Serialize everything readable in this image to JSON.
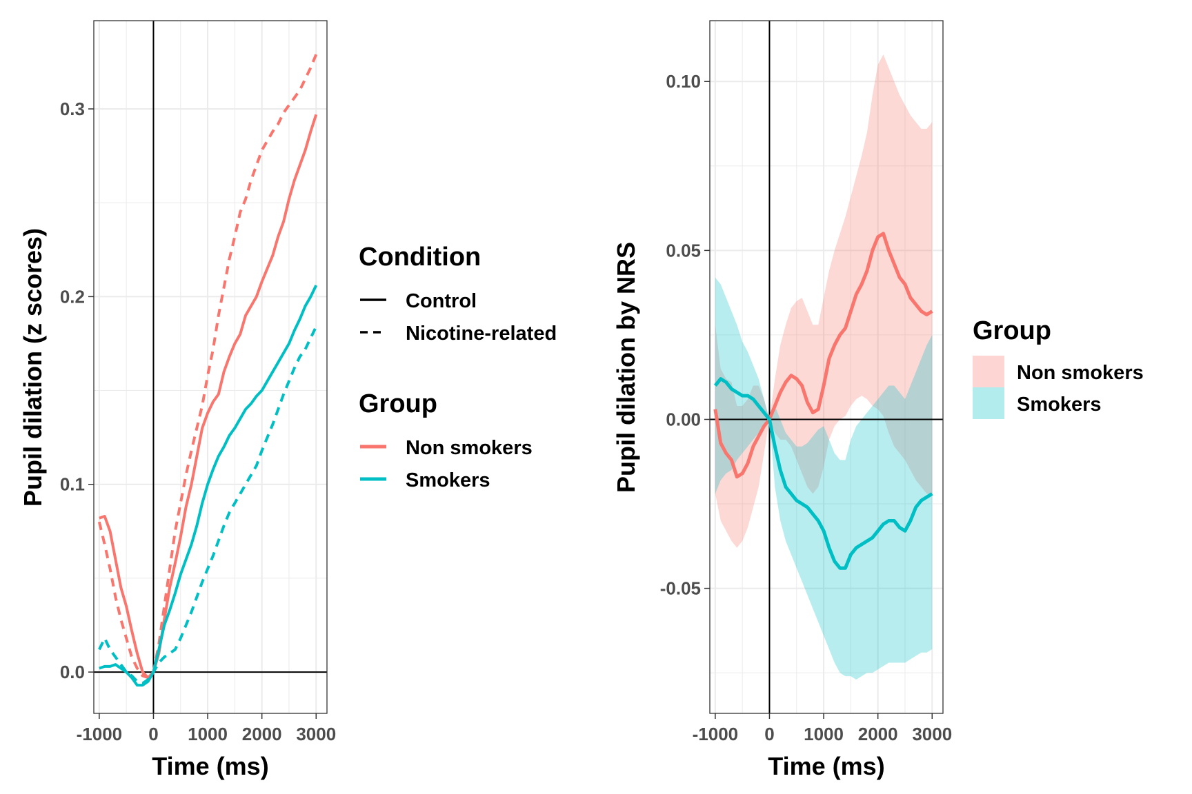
{
  "colors": {
    "non_smokers": "#F8766D",
    "smokers": "#00BFC4",
    "grid": "#ebebeb",
    "panel_border": "#333333",
    "ref_line": "#000000"
  },
  "chart_data": [
    {
      "type": "line",
      "xlabel": "Time (ms)",
      "ylabel": "Pupil dilation (z scores)",
      "xlim": [
        -1100,
        3200
      ],
      "ylim": [
        -0.022,
        0.347
      ],
      "x_ticks": [
        -1000,
        0,
        1000,
        2000,
        3000
      ],
      "x_tick_labels": [
        "-1000",
        "0",
        "1000",
        "2000",
        "3000"
      ],
      "y_ticks": [
        0.0,
        0.1,
        0.2,
        0.3
      ],
      "y_tick_labels": [
        "0.0",
        "0.1",
        "0.2",
        "0.3"
      ],
      "grid": true,
      "reference_lines": {
        "x": 0,
        "y": 0
      },
      "legend": {
        "position": "right",
        "condition_title": "Condition",
        "condition_items": [
          {
            "label": "Control",
            "linetype": "solid"
          },
          {
            "label": "Nicotine-related",
            "linetype": "dashed"
          }
        ],
        "group_title": "Group",
        "group_items": [
          {
            "label": "Non smokers",
            "color": "#F8766D"
          },
          {
            "label": "Smokers",
            "color": "#00BFC4"
          }
        ]
      },
      "series": [
        {
          "group": "Non smokers",
          "condition": "Control",
          "linetype": "solid",
          "color": "#F8766D",
          "x": [
            -1000,
            -900,
            -800,
            -700,
            -600,
            -500,
            -400,
            -300,
            -200,
            -100,
            0,
            100,
            200,
            300,
            400,
            500,
            600,
            700,
            800,
            900,
            1000,
            1100,
            1200,
            1300,
            1400,
            1500,
            1600,
            1700,
            1800,
            1900,
            2000,
            2100,
            2200,
            2300,
            2400,
            2500,
            2600,
            2700,
            2800,
            2900,
            3000
          ],
          "y": [
            0.082,
            0.083,
            0.075,
            0.06,
            0.045,
            0.035,
            0.022,
            0.01,
            0.0,
            -0.003,
            0.0,
            0.01,
            0.028,
            0.045,
            0.058,
            0.072,
            0.088,
            0.1,
            0.115,
            0.13,
            0.138,
            0.144,
            0.148,
            0.16,
            0.168,
            0.175,
            0.18,
            0.19,
            0.195,
            0.2,
            0.208,
            0.215,
            0.222,
            0.232,
            0.24,
            0.252,
            0.262,
            0.27,
            0.278,
            0.288,
            0.297
          ]
        },
        {
          "group": "Non smokers",
          "condition": "Nicotine-related",
          "linetype": "dashed",
          "color": "#F8766D",
          "x": [
            -1000,
            -900,
            -800,
            -700,
            -600,
            -500,
            -400,
            -300,
            -200,
            -100,
            0,
            100,
            200,
            300,
            400,
            500,
            600,
            700,
            800,
            900,
            1000,
            1100,
            1200,
            1300,
            1400,
            1500,
            1600,
            1700,
            1800,
            1900,
            2000,
            2100,
            2200,
            2300,
            2400,
            2500,
            2600,
            2700,
            2800,
            2900,
            3000
          ],
          "y": [
            0.08,
            0.068,
            0.055,
            0.04,
            0.028,
            0.018,
            0.008,
            0.002,
            -0.002,
            -0.003,
            0.0,
            0.015,
            0.035,
            0.055,
            0.075,
            0.09,
            0.105,
            0.118,
            0.13,
            0.142,
            0.158,
            0.172,
            0.19,
            0.205,
            0.22,
            0.232,
            0.245,
            0.252,
            0.262,
            0.27,
            0.278,
            0.283,
            0.288,
            0.292,
            0.298,
            0.302,
            0.306,
            0.31,
            0.316,
            0.322,
            0.329
          ]
        },
        {
          "group": "Smokers",
          "condition": "Control",
          "linetype": "solid",
          "color": "#00BFC4",
          "x": [
            -1000,
            -900,
            -800,
            -700,
            -600,
            -500,
            -400,
            -300,
            -200,
            -100,
            0,
            100,
            200,
            300,
            400,
            500,
            600,
            700,
            800,
            900,
            1000,
            1100,
            1200,
            1300,
            1400,
            1500,
            1600,
            1700,
            1800,
            1900,
            2000,
            2100,
            2200,
            2300,
            2400,
            2500,
            2600,
            2700,
            2800,
            2900,
            3000
          ],
          "y": [
            0.002,
            0.003,
            0.003,
            0.004,
            0.002,
            0.0,
            -0.003,
            -0.007,
            -0.007,
            -0.005,
            0.0,
            0.012,
            0.025,
            0.033,
            0.042,
            0.052,
            0.06,
            0.068,
            0.078,
            0.09,
            0.1,
            0.108,
            0.115,
            0.12,
            0.126,
            0.13,
            0.135,
            0.14,
            0.143,
            0.147,
            0.15,
            0.155,
            0.16,
            0.165,
            0.17,
            0.175,
            0.182,
            0.188,
            0.195,
            0.2,
            0.206
          ]
        },
        {
          "group": "Smokers",
          "condition": "Nicotine-related",
          "linetype": "dashed",
          "color": "#00BFC4",
          "x": [
            -1000,
            -900,
            -800,
            -700,
            -600,
            -500,
            -400,
            -300,
            -200,
            -100,
            0,
            100,
            200,
            300,
            400,
            500,
            600,
            700,
            800,
            900,
            1000,
            1100,
            1200,
            1300,
            1400,
            1500,
            1600,
            1700,
            1800,
            1900,
            2000,
            2100,
            2200,
            2300,
            2400,
            2500,
            2600,
            2700,
            2800,
            2900,
            3000
          ],
          "y": [
            0.012,
            0.018,
            0.012,
            0.008,
            0.004,
            0.0,
            -0.002,
            -0.005,
            -0.006,
            -0.004,
            0.0,
            0.005,
            0.008,
            0.01,
            0.012,
            0.018,
            0.025,
            0.032,
            0.04,
            0.048,
            0.055,
            0.062,
            0.07,
            0.078,
            0.085,
            0.09,
            0.095,
            0.1,
            0.105,
            0.11,
            0.118,
            0.125,
            0.132,
            0.14,
            0.148,
            0.155,
            0.162,
            0.168,
            0.172,
            0.178,
            0.184
          ]
        }
      ]
    },
    {
      "type": "line",
      "xlabel": "Time (ms)",
      "ylabel": "Pupil dilation by NRS",
      "xlim": [
        -1100,
        3200
      ],
      "ylim": [
        -0.087,
        0.118
      ],
      "x_ticks": [
        -1000,
        0,
        1000,
        2000,
        3000
      ],
      "x_tick_labels": [
        "-1000",
        "0",
        "1000",
        "2000",
        "3000"
      ],
      "y_ticks": [
        -0.05,
        0.0,
        0.05,
        0.1
      ],
      "y_tick_labels": [
        "-0.05",
        "0.00",
        "0.05",
        "0.10"
      ],
      "grid": true,
      "reference_lines": {
        "x": 0,
        "y": 0
      },
      "legend": {
        "position": "right",
        "group_title": "Group",
        "group_items": [
          {
            "label": "Non smokers",
            "color": "#F8766D"
          },
          {
            "label": "Smokers",
            "color": "#00BFC4"
          }
        ]
      },
      "series": [
        {
          "group": "Non smokers",
          "color": "#F8766D",
          "x": [
            -1000,
            -900,
            -800,
            -700,
            -600,
            -500,
            -400,
            -300,
            -200,
            -100,
            0,
            100,
            200,
            300,
            400,
            500,
            600,
            700,
            800,
            900,
            1000,
            1100,
            1200,
            1300,
            1400,
            1500,
            1600,
            1700,
            1800,
            1900,
            2000,
            2100,
            2200,
            2300,
            2400,
            2500,
            2600,
            2700,
            2800,
            2900,
            3000
          ],
          "y": [
            0.003,
            -0.007,
            -0.01,
            -0.012,
            -0.017,
            -0.016,
            -0.013,
            -0.008,
            -0.005,
            -0.002,
            0.0,
            0.004,
            0.008,
            0.011,
            0.013,
            0.012,
            0.01,
            0.005,
            0.002,
            0.003,
            0.01,
            0.018,
            0.022,
            0.025,
            0.027,
            0.032,
            0.037,
            0.04,
            0.044,
            0.05,
            0.054,
            0.055,
            0.05,
            0.046,
            0.042,
            0.04,
            0.036,
            0.034,
            0.032,
            0.031,
            0.032
          ],
          "ci_lower": [
            -0.022,
            -0.03,
            -0.033,
            -0.036,
            -0.038,
            -0.036,
            -0.032,
            -0.026,
            -0.02,
            -0.01,
            0.0,
            -0.004,
            -0.006,
            -0.006,
            -0.008,
            -0.012,
            -0.016,
            -0.02,
            -0.022,
            -0.02,
            -0.014,
            -0.006,
            -0.002,
            0.0,
            0.001,
            0.004,
            0.006,
            0.007,
            0.006,
            0.004,
            0.003,
            0.001,
            -0.004,
            -0.008,
            -0.01,
            -0.012,
            -0.015,
            -0.018,
            -0.02,
            -0.022,
            -0.022
          ],
          "ci_upper": [
            0.028,
            0.015,
            0.012,
            0.011,
            0.004,
            0.004,
            0.006,
            0.01,
            0.01,
            0.006,
            0.0,
            0.012,
            0.022,
            0.028,
            0.033,
            0.035,
            0.036,
            0.032,
            0.028,
            0.028,
            0.036,
            0.044,
            0.05,
            0.055,
            0.06,
            0.066,
            0.072,
            0.078,
            0.085,
            0.096,
            0.105,
            0.108,
            0.104,
            0.1,
            0.096,
            0.093,
            0.09,
            0.088,
            0.086,
            0.086,
            0.088
          ]
        },
        {
          "group": "Smokers",
          "color": "#00BFC4",
          "x": [
            -1000,
            -900,
            -800,
            -700,
            -600,
            -500,
            -400,
            -300,
            -200,
            -100,
            0,
            100,
            200,
            300,
            400,
            500,
            600,
            700,
            800,
            900,
            1000,
            1100,
            1200,
            1300,
            1400,
            1500,
            1600,
            1700,
            1800,
            1900,
            2000,
            2100,
            2200,
            2300,
            2400,
            2500,
            2600,
            2700,
            2800,
            2900,
            3000
          ],
          "y": [
            0.01,
            0.012,
            0.011,
            0.009,
            0.008,
            0.007,
            0.007,
            0.006,
            0.004,
            0.002,
            0.0,
            -0.008,
            -0.015,
            -0.02,
            -0.022,
            -0.024,
            -0.025,
            -0.026,
            -0.028,
            -0.03,
            -0.033,
            -0.038,
            -0.042,
            -0.044,
            -0.044,
            -0.04,
            -0.038,
            -0.037,
            -0.036,
            -0.035,
            -0.033,
            -0.031,
            -0.03,
            -0.03,
            -0.032,
            -0.033,
            -0.03,
            -0.026,
            -0.024,
            -0.023,
            -0.022
          ],
          "ci_lower": [
            -0.022,
            -0.018,
            -0.016,
            -0.015,
            -0.012,
            -0.01,
            -0.008,
            -0.006,
            -0.004,
            -0.002,
            0.0,
            -0.02,
            -0.03,
            -0.036,
            -0.04,
            -0.044,
            -0.048,
            -0.052,
            -0.056,
            -0.06,
            -0.064,
            -0.068,
            -0.072,
            -0.075,
            -0.076,
            -0.076,
            -0.077,
            -0.076,
            -0.075,
            -0.075,
            -0.074,
            -0.073,
            -0.072,
            -0.072,
            -0.072,
            -0.072,
            -0.071,
            -0.07,
            -0.069,
            -0.069,
            -0.068
          ],
          "ci_upper": [
            0.042,
            0.04,
            0.036,
            0.032,
            0.028,
            0.023,
            0.02,
            0.016,
            0.012,
            0.006,
            0.0,
            0.004,
            0.0,
            -0.004,
            -0.006,
            -0.008,
            -0.008,
            -0.007,
            -0.005,
            -0.003,
            -0.002,
            -0.006,
            -0.01,
            -0.012,
            -0.012,
            -0.006,
            -0.002,
            0.0,
            0.002,
            0.004,
            0.006,
            0.008,
            0.01,
            0.01,
            0.008,
            0.006,
            0.01,
            0.014,
            0.018,
            0.022,
            0.025
          ]
        }
      ]
    }
  ]
}
